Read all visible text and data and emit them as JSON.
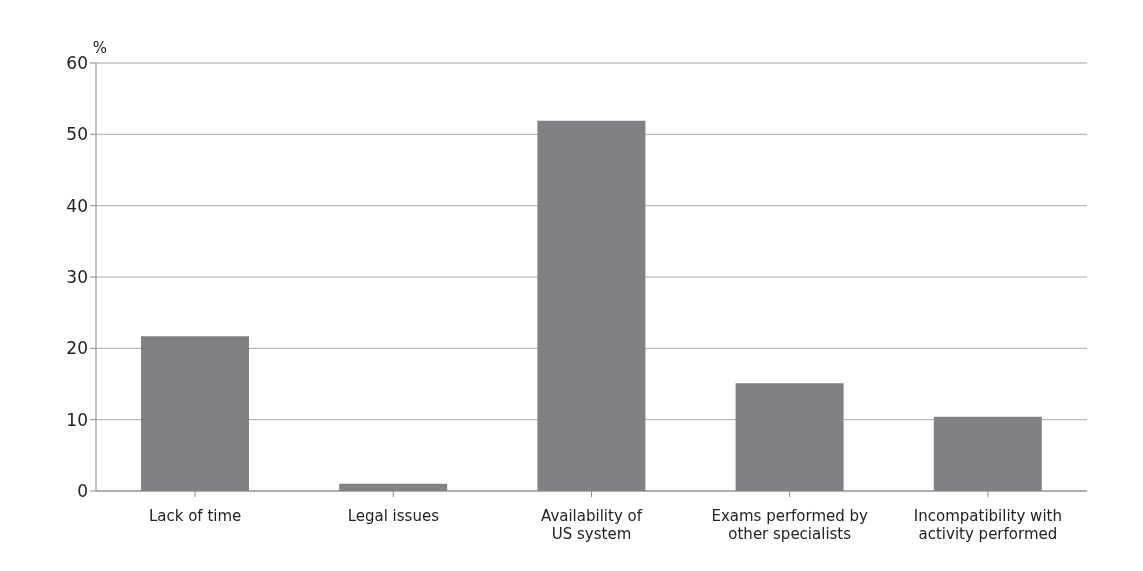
{
  "chart_data": {
    "type": "bar",
    "ylabel": "%",
    "categories": [
      "Lack of time",
      "Legal issues",
      "Availability of\nUS system",
      "Exams performed by\nother specialists",
      "Incompatibility with\nactivity performed"
    ],
    "values": [
      21.7,
      1,
      51.9,
      15.1,
      10.4
    ],
    "color": "#808184",
    "ylim": [
      0,
      60
    ],
    "yticks": [
      0,
      10,
      20,
      30,
      40,
      50,
      60
    ],
    "grid": "y"
  }
}
